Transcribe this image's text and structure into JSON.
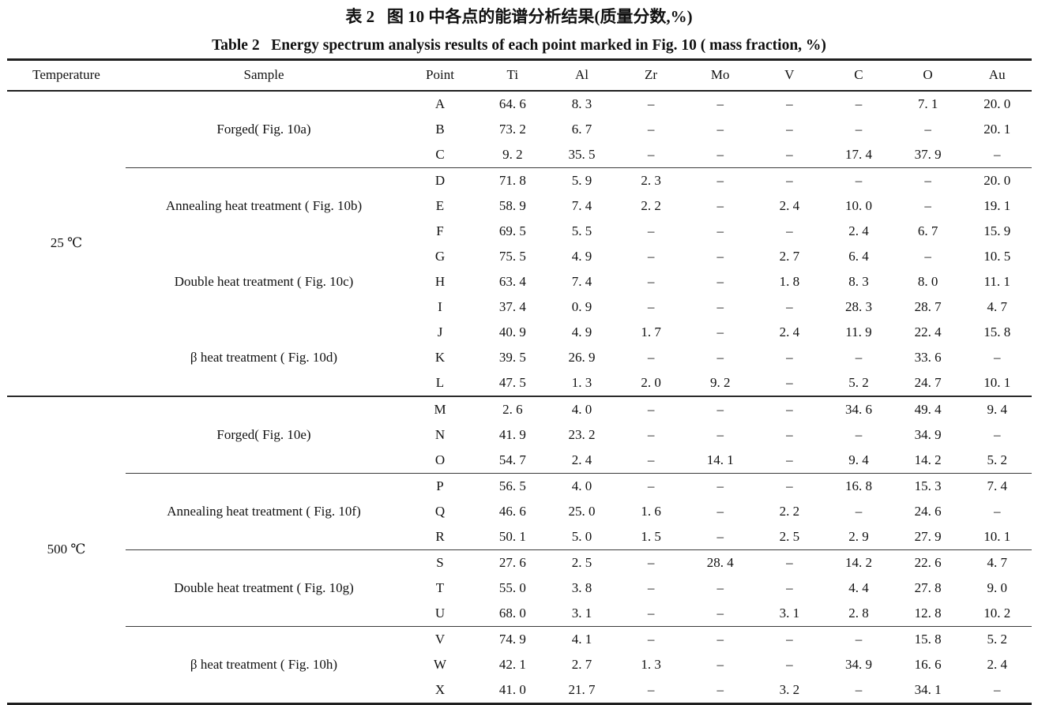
{
  "titles": {
    "zh": "表 2   图 10 中各点的能谱分析结果(质量分数,%)",
    "en": "Table 2   Energy spectrum analysis results of each point marked in Fig. 10 ( mass fraction, %)"
  },
  "table": {
    "columns": [
      "Temperature",
      "Sample",
      "Point",
      "Ti",
      "Al",
      "Zr",
      "Mo",
      "V",
      "C",
      "O",
      "Au"
    ],
    "groups": [
      {
        "temperature": "25 ℃",
        "samples": [
          {
            "label": "Forged( Fig. 10a)",
            "divider_after": true,
            "rows": [
              {
                "point": "A",
                "values": [
                  "64. 6",
                  "8. 3",
                  "–",
                  "–",
                  "–",
                  "–",
                  "7. 1",
                  "20. 0"
                ]
              },
              {
                "point": "B",
                "values": [
                  "73. 2",
                  "6. 7",
                  "–",
                  "–",
                  "–",
                  "–",
                  "–",
                  "20. 1"
                ]
              },
              {
                "point": "C",
                "values": [
                  "9. 2",
                  "35. 5",
                  "–",
                  "–",
                  "–",
                  "17. 4",
                  "37. 9",
                  "–"
                ]
              }
            ]
          },
          {
            "label": "Annealing heat treatment ( Fig. 10b)",
            "divider_after": false,
            "rows": [
              {
                "point": "D",
                "values": [
                  "71. 8",
                  "5. 9",
                  "2. 3",
                  "–",
                  "–",
                  "–",
                  "–",
                  "20. 0"
                ]
              },
              {
                "point": "E",
                "values": [
                  "58. 9",
                  "7. 4",
                  "2. 2",
                  "–",
                  "2. 4",
                  "10. 0",
                  "–",
                  "19. 1"
                ]
              },
              {
                "point": "F",
                "values": [
                  "69. 5",
                  "5. 5",
                  "–",
                  "–",
                  "–",
                  "2. 4",
                  "6. 7",
                  "15. 9"
                ]
              }
            ]
          },
          {
            "label": "Double heat treatment ( Fig. 10c)",
            "divider_after": false,
            "rows": [
              {
                "point": "G",
                "values": [
                  "75. 5",
                  "4. 9",
                  "–",
                  "–",
                  "2. 7",
                  "6. 4",
                  "–",
                  "10. 5"
                ]
              },
              {
                "point": "H",
                "values": [
                  "63. 4",
                  "7. 4",
                  "–",
                  "–",
                  "1. 8",
                  "8. 3",
                  "8. 0",
                  "11. 1"
                ]
              },
              {
                "point": "I",
                "values": [
                  "37. 4",
                  "0. 9",
                  "–",
                  "–",
                  "–",
                  "28. 3",
                  "28. 7",
                  "4. 7"
                ]
              }
            ]
          },
          {
            "label": "β heat treatment ( Fig. 10d)",
            "divider_after": false,
            "rows": [
              {
                "point": "J",
                "values": [
                  "40. 9",
                  "4. 9",
                  "1. 7",
                  "–",
                  "2. 4",
                  "11. 9",
                  "22. 4",
                  "15. 8"
                ]
              },
              {
                "point": "K",
                "values": [
                  "39. 5",
                  "26. 9",
                  "–",
                  "–",
                  "–",
                  "–",
                  "33. 6",
                  "–"
                ]
              },
              {
                "point": "L",
                "values": [
                  "47. 5",
                  "1. 3",
                  "2. 0",
                  "9. 2",
                  "–",
                  "5. 2",
                  "24. 7",
                  "10. 1"
                ]
              }
            ]
          }
        ]
      },
      {
        "temperature": "500 ℃",
        "samples": [
          {
            "label": "Forged( Fig. 10e)",
            "divider_after": true,
            "rows": [
              {
                "point": "M",
                "values": [
                  "2. 6",
                  "4. 0",
                  "–",
                  "–",
                  "–",
                  "34. 6",
                  "49. 4",
                  "9. 4"
                ]
              },
              {
                "point": "N",
                "values": [
                  "41. 9",
                  "23. 2",
                  "–",
                  "–",
                  "–",
                  "–",
                  "34. 9",
                  "–"
                ]
              },
              {
                "point": "O",
                "values": [
                  "54. 7",
                  "2. 4",
                  "–",
                  "14. 1",
                  "–",
                  "9. 4",
                  "14. 2",
                  "5. 2"
                ]
              }
            ]
          },
          {
            "label": "Annealing heat treatment ( Fig. 10f)",
            "divider_after": true,
            "rows": [
              {
                "point": "P",
                "values": [
                  "56. 5",
                  "4. 0",
                  "–",
                  "–",
                  "–",
                  "16. 8",
                  "15. 3",
                  "7. 4"
                ]
              },
              {
                "point": "Q",
                "values": [
                  "46. 6",
                  "25. 0",
                  "1. 6",
                  "–",
                  "2. 2",
                  "–",
                  "24. 6",
                  "–"
                ]
              },
              {
                "point": "R",
                "values": [
                  "50. 1",
                  "5. 0",
                  "1. 5",
                  "–",
                  "2. 5",
                  "2. 9",
                  "27. 9",
                  "10. 1"
                ]
              }
            ]
          },
          {
            "label": "Double heat treatment ( Fig. 10g)",
            "divider_after": true,
            "rows": [
              {
                "point": "S",
                "values": [
                  "27. 6",
                  "2. 5",
                  "–",
                  "28. 4",
                  "–",
                  "14. 2",
                  "22. 6",
                  "4. 7"
                ]
              },
              {
                "point": "T",
                "values": [
                  "55. 0",
                  "3. 8",
                  "–",
                  "–",
                  "–",
                  "4. 4",
                  "27. 8",
                  "9. 0"
                ]
              },
              {
                "point": "U",
                "values": [
                  "68. 0",
                  "3. 1",
                  "–",
                  "–",
                  "3. 1",
                  "2. 8",
                  "12. 8",
                  "10. 2"
                ]
              }
            ]
          },
          {
            "label": "β heat treatment ( Fig. 10h)",
            "divider_after": false,
            "rows": [
              {
                "point": "V",
                "values": [
                  "74. 9",
                  "4. 1",
                  "–",
                  "–",
                  "–",
                  "–",
                  "15. 8",
                  "5. 2"
                ]
              },
              {
                "point": "W",
                "values": [
                  "42. 1",
                  "2. 7",
                  "1. 3",
                  "–",
                  "–",
                  "34. 9",
                  "16. 6",
                  "2. 4"
                ]
              },
              {
                "point": "X",
                "values": [
                  "41. 0",
                  "21. 7",
                  "–",
                  "–",
                  "3. 2",
                  "–",
                  "34. 1",
                  "–"
                ]
              }
            ]
          }
        ]
      }
    ]
  }
}
